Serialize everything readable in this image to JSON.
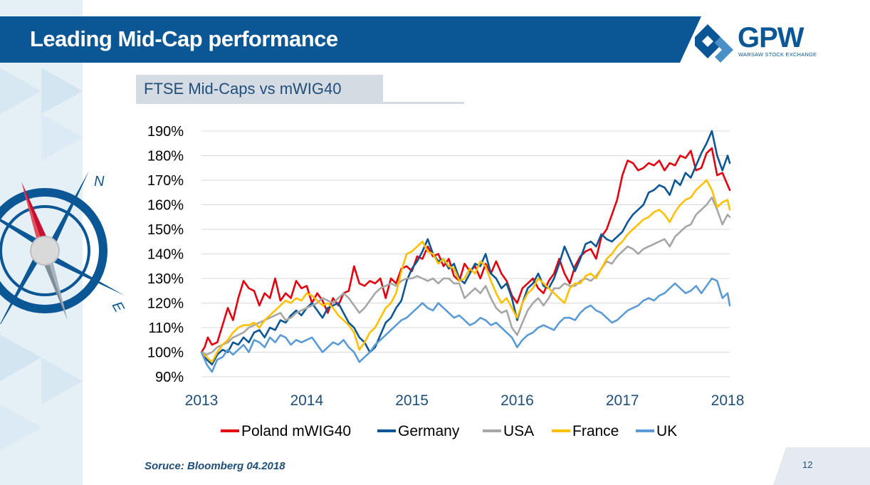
{
  "slide": {
    "title": "Leading Mid-Cap performance",
    "subtitle": "FTSE Mid-Caps vs mWIG40",
    "source": "Soruce: Bloomberg 04.2018",
    "page_number": "12"
  },
  "logo": {
    "name": "GPW",
    "tagline": "WARSAW STOCK EXCHANGE"
  },
  "compass": {
    "north_label": "N",
    "east_label": "E"
  },
  "colors": {
    "header": "#0b5694",
    "accent_light": "#e4eff6",
    "poland": "#e3000f",
    "germany": "#0b5694",
    "usa": "#a6a6a6",
    "france": "#ffc000",
    "uk": "#5b9bd5"
  },
  "chart_data": {
    "type": "line",
    "y_ticks": [
      90,
      100,
      110,
      120,
      130,
      140,
      150,
      160,
      170,
      180,
      190
    ],
    "y_tick_format": "percent",
    "ylim": [
      90,
      190
    ],
    "xlim": [
      2013,
      2018.02
    ],
    "x_ticks": [
      2013,
      2014,
      2015,
      2016,
      2017,
      2018
    ],
    "grid": true,
    "legend_position": "bottom",
    "series": [
      {
        "name": "Poland mWIG40",
        "color": "#e3000f",
        "x": [
          2013.0,
          2013.03,
          2013.06,
          2013.1,
          2013.15,
          2013.2,
          2013.25,
          2013.3,
          2013.35,
          2013.4,
          2013.45,
          2013.5,
          2013.55,
          2013.6,
          2013.65,
          2013.7,
          2013.75,
          2013.8,
          2013.85,
          2013.9,
          2013.95,
          2014.0,
          2014.05,
          2014.1,
          2014.15,
          2014.2,
          2014.25,
          2014.3,
          2014.35,
          2014.4,
          2014.45,
          2014.5,
          2014.55,
          2014.6,
          2014.65,
          2014.7,
          2014.75,
          2014.8,
          2014.85,
          2014.9,
          2014.95,
          2015.0,
          2015.05,
          2015.1,
          2015.15,
          2015.2,
          2015.25,
          2015.3,
          2015.35,
          2015.4,
          2015.45,
          2015.5,
          2015.55,
          2015.6,
          2015.65,
          2015.7,
          2015.75,
          2015.8,
          2015.85,
          2015.9,
          2015.95,
          2016.0,
          2016.05,
          2016.1,
          2016.15,
          2016.2,
          2016.25,
          2016.3,
          2016.35,
          2016.4,
          2016.45,
          2016.5,
          2016.55,
          2016.6,
          2016.65,
          2016.7,
          2016.75,
          2016.8,
          2016.85,
          2016.9,
          2016.95,
          2017.0,
          2017.05,
          2017.1,
          2017.15,
          2017.2,
          2017.25,
          2017.3,
          2017.35,
          2017.4,
          2017.45,
          2017.5,
          2017.55,
          2017.6,
          2017.65,
          2017.7,
          2017.75,
          2017.8,
          2017.85,
          2017.9,
          2017.95,
          2018.0,
          2018.02
        ],
        "values": [
          100,
          102,
          106,
          103,
          104,
          111,
          118,
          113,
          122,
          129,
          126,
          125,
          119,
          124,
          122,
          130,
          121,
          124,
          122,
          129,
          126,
          127,
          120,
          124,
          121,
          116,
          122,
          119,
          124,
          125,
          135,
          128,
          127,
          129,
          128,
          130,
          122,
          130,
          128,
          134,
          135,
          133,
          139,
          138,
          143,
          139,
          140,
          135,
          138,
          131,
          129,
          136,
          133,
          135,
          130,
          136,
          132,
          137,
          132,
          129,
          123,
          120,
          126,
          128,
          130,
          126,
          124,
          129,
          132,
          138,
          132,
          128,
          135,
          139,
          141,
          142,
          138,
          147,
          150,
          156,
          162,
          172,
          178,
          177,
          174,
          175,
          177,
          176,
          178,
          174,
          177,
          176,
          180,
          179,
          182,
          174,
          175,
          181,
          183,
          172,
          173,
          168,
          166
        ]
      },
      {
        "name": "Germany",
        "color": "#0b5694",
        "x": [
          2013.0,
          2013.05,
          2013.1,
          2013.15,
          2013.2,
          2013.25,
          2013.3,
          2013.35,
          2013.4,
          2013.45,
          2013.5,
          2013.55,
          2013.6,
          2013.65,
          2013.7,
          2013.75,
          2013.8,
          2013.85,
          2013.9,
          2013.95,
          2014.0,
          2014.05,
          2014.1,
          2014.15,
          2014.2,
          2014.25,
          2014.3,
          2014.35,
          2014.4,
          2014.45,
          2014.5,
          2014.55,
          2014.6,
          2014.65,
          2014.7,
          2014.75,
          2014.8,
          2014.85,
          2014.9,
          2014.95,
          2015.0,
          2015.05,
          2015.1,
          2015.15,
          2015.2,
          2015.25,
          2015.3,
          2015.35,
          2015.4,
          2015.45,
          2015.5,
          2015.55,
          2015.6,
          2015.65,
          2015.7,
          2015.75,
          2015.8,
          2015.85,
          2015.9,
          2015.95,
          2016.0,
          2016.05,
          2016.1,
          2016.15,
          2016.2,
          2016.25,
          2016.3,
          2016.35,
          2016.4,
          2016.45,
          2016.5,
          2016.55,
          2016.6,
          2016.65,
          2016.7,
          2016.75,
          2016.8,
          2016.85,
          2016.9,
          2016.95,
          2017.0,
          2017.05,
          2017.1,
          2017.15,
          2017.2,
          2017.25,
          2017.3,
          2017.35,
          2017.4,
          2017.45,
          2017.5,
          2017.55,
          2017.6,
          2017.65,
          2017.7,
          2017.75,
          2017.8,
          2017.85,
          2017.9,
          2017.95,
          2018.0,
          2018.02
        ],
        "values": [
          100,
          97,
          95,
          99,
          101,
          100,
          104,
          103,
          106,
          104,
          108,
          109,
          106,
          110,
          109,
          113,
          112,
          115,
          117,
          115,
          118,
          120,
          117,
          114,
          118,
          119,
          120,
          116,
          112,
          110,
          106,
          104,
          100,
          102,
          107,
          112,
          114,
          118,
          121,
          129,
          134,
          137,
          141,
          146,
          140,
          137,
          138,
          134,
          136,
          130,
          128,
          132,
          136,
          135,
          140,
          132,
          130,
          126,
          128,
          122,
          113,
          120,
          126,
          128,
          132,
          127,
          126,
          130,
          136,
          143,
          138,
          133,
          138,
          144,
          145,
          143,
          148,
          146,
          145,
          147,
          149,
          153,
          156,
          158,
          160,
          165,
          166,
          168,
          167,
          164,
          170,
          168,
          173,
          171,
          176,
          181,
          185,
          190,
          180,
          174,
          180,
          177
        ]
      },
      {
        "name": "USA",
        "color": "#a6a6a6",
        "x": [
          2013.0,
          2013.05,
          2013.1,
          2013.15,
          2013.2,
          2013.25,
          2013.3,
          2013.35,
          2013.4,
          2013.45,
          2013.5,
          2013.55,
          2013.6,
          2013.65,
          2013.7,
          2013.75,
          2013.8,
          2013.85,
          2013.9,
          2013.95,
          2014.0,
          2014.05,
          2014.1,
          2014.15,
          2014.2,
          2014.25,
          2014.3,
          2014.35,
          2014.4,
          2014.45,
          2014.5,
          2014.55,
          2014.6,
          2014.65,
          2014.7,
          2014.75,
          2014.8,
          2014.85,
          2014.9,
          2014.95,
          2015.0,
          2015.05,
          2015.1,
          2015.15,
          2015.2,
          2015.25,
          2015.3,
          2015.35,
          2015.4,
          2015.45,
          2015.5,
          2015.55,
          2015.6,
          2015.65,
          2015.7,
          2015.75,
          2015.8,
          2015.85,
          2015.9,
          2015.95,
          2016.0,
          2016.05,
          2016.1,
          2016.15,
          2016.2,
          2016.25,
          2016.3,
          2016.35,
          2016.4,
          2016.45,
          2016.5,
          2016.55,
          2016.6,
          2016.65,
          2016.7,
          2016.75,
          2016.8,
          2016.85,
          2016.9,
          2016.95,
          2017.0,
          2017.05,
          2017.1,
          2017.15,
          2017.2,
          2017.25,
          2017.3,
          2017.35,
          2017.4,
          2017.45,
          2017.5,
          2017.55,
          2017.6,
          2017.65,
          2017.7,
          2017.75,
          2017.8,
          2017.85,
          2017.9,
          2017.95,
          2018.0,
          2018.02
        ],
        "values": [
          100,
          99,
          100,
          102,
          103,
          104,
          106,
          107,
          108,
          110,
          111,
          112,
          113,
          114,
          115,
          116,
          113,
          114,
          116,
          117,
          118,
          119,
          120,
          122,
          121,
          120,
          122,
          124,
          122,
          119,
          116,
          118,
          121,
          124,
          126,
          127,
          128,
          127,
          129,
          130,
          130,
          131,
          130,
          129,
          130,
          128,
          130,
          130,
          128,
          128,
          122,
          124,
          126,
          124,
          127,
          122,
          118,
          116,
          117,
          110,
          107,
          112,
          117,
          120,
          122,
          119,
          122,
          126,
          126,
          128,
          127,
          127,
          129,
          130,
          129,
          131,
          134,
          137,
          136,
          139,
          141,
          143,
          142,
          140,
          142,
          143,
          144,
          145,
          146,
          143,
          147,
          149,
          151,
          152,
          156,
          158,
          160,
          163,
          158,
          152,
          156,
          155
        ]
      },
      {
        "name": "France",
        "color": "#ffc000",
        "x": [
          2013.0,
          2013.05,
          2013.1,
          2013.15,
          2013.2,
          2013.25,
          2013.3,
          2013.35,
          2013.4,
          2013.45,
          2013.5,
          2013.55,
          2013.6,
          2013.65,
          2013.7,
          2013.75,
          2013.8,
          2013.85,
          2013.9,
          2013.95,
          2014.0,
          2014.05,
          2014.1,
          2014.15,
          2014.2,
          2014.25,
          2014.3,
          2014.35,
          2014.4,
          2014.45,
          2014.5,
          2014.55,
          2014.6,
          2014.65,
          2014.7,
          2014.75,
          2014.8,
          2014.85,
          2014.9,
          2014.95,
          2015.0,
          2015.05,
          2015.1,
          2015.15,
          2015.2,
          2015.25,
          2015.3,
          2015.35,
          2015.4,
          2015.45,
          2015.5,
          2015.55,
          2015.6,
          2015.65,
          2015.7,
          2015.75,
          2015.8,
          2015.85,
          2015.9,
          2015.95,
          2016.0,
          2016.05,
          2016.1,
          2016.15,
          2016.2,
          2016.25,
          2016.3,
          2016.35,
          2016.4,
          2016.45,
          2016.5,
          2016.55,
          2016.6,
          2016.65,
          2016.7,
          2016.75,
          2016.8,
          2016.85,
          2016.9,
          2016.95,
          2017.0,
          2017.05,
          2017.1,
          2017.15,
          2017.2,
          2017.25,
          2017.3,
          2017.35,
          2017.4,
          2017.45,
          2017.5,
          2017.55,
          2017.6,
          2017.65,
          2017.7,
          2017.75,
          2017.8,
          2017.85,
          2017.9,
          2017.95,
          2018.0,
          2018.02
        ],
        "values": [
          100,
          98,
          96,
          100,
          103,
          105,
          108,
          110,
          111,
          111,
          112,
          110,
          113,
          115,
          117,
          119,
          121,
          120,
          122,
          121,
          124,
          123,
          121,
          119,
          120,
          118,
          115,
          113,
          111,
          108,
          101,
          104,
          108,
          110,
          114,
          118,
          120,
          124,
          133,
          140,
          141,
          143,
          145,
          141,
          140,
          136,
          138,
          135,
          134,
          129,
          130,
          134,
          132,
          137,
          135,
          129,
          124,
          120,
          122,
          118,
          114,
          120,
          124,
          126,
          130,
          128,
          126,
          124,
          122,
          120,
          126,
          128,
          128,
          131,
          132,
          130,
          134,
          138,
          140,
          143,
          145,
          148,
          150,
          152,
          154,
          155,
          157,
          158,
          156,
          153,
          157,
          160,
          162,
          163,
          166,
          168,
          170,
          166,
          159,
          161,
          162,
          158
        ]
      },
      {
        "name": "UK",
        "color": "#5b9bd5",
        "x": [
          2013.0,
          2013.05,
          2013.1,
          2013.15,
          2013.2,
          2013.25,
          2013.3,
          2013.35,
          2013.4,
          2013.45,
          2013.5,
          2013.55,
          2013.6,
          2013.65,
          2013.7,
          2013.75,
          2013.8,
          2013.85,
          2013.9,
          2013.95,
          2014.0,
          2014.05,
          2014.1,
          2014.15,
          2014.2,
          2014.25,
          2014.3,
          2014.35,
          2014.4,
          2014.45,
          2014.5,
          2014.55,
          2014.6,
          2014.65,
          2014.7,
          2014.75,
          2014.8,
          2014.85,
          2014.9,
          2014.95,
          2015.0,
          2015.05,
          2015.1,
          2015.15,
          2015.2,
          2015.25,
          2015.3,
          2015.35,
          2015.4,
          2015.45,
          2015.5,
          2015.55,
          2015.6,
          2015.65,
          2015.7,
          2015.75,
          2015.8,
          2015.85,
          2015.9,
          2015.95,
          2016.0,
          2016.05,
          2016.1,
          2016.15,
          2016.2,
          2016.25,
          2016.3,
          2016.35,
          2016.4,
          2016.45,
          2016.5,
          2016.55,
          2016.6,
          2016.65,
          2016.7,
          2016.75,
          2016.8,
          2016.85,
          2016.9,
          2016.95,
          2017.0,
          2017.05,
          2017.1,
          2017.15,
          2017.2,
          2017.25,
          2017.3,
          2017.35,
          2017.4,
          2017.45,
          2017.5,
          2017.55,
          2017.6,
          2017.65,
          2017.7,
          2017.75,
          2017.8,
          2017.85,
          2017.9,
          2017.95,
          2018.0,
          2018.02
        ],
        "values": [
          100,
          95,
          92,
          97,
          98,
          101,
          99,
          101,
          103,
          100,
          105,
          104,
          102,
          106,
          104,
          107,
          106,
          103,
          105,
          104,
          105,
          106,
          103,
          100,
          102,
          104,
          103,
          105,
          102,
          100,
          96,
          98,
          100,
          103,
          105,
          107,
          109,
          111,
          113,
          114,
          116,
          118,
          120,
          118,
          117,
          120,
          118,
          116,
          114,
          115,
          113,
          111,
          112,
          114,
          113,
          111,
          112,
          110,
          108,
          106,
          102,
          105,
          107,
          108,
          110,
          111,
          110,
          109,
          112,
          114,
          114,
          113,
          116,
          118,
          119,
          117,
          116,
          114,
          112,
          113,
          115,
          117,
          118,
          119,
          121,
          122,
          121,
          123,
          124,
          126,
          128,
          126,
          124,
          125,
          127,
          124,
          127,
          130,
          129,
          122,
          124,
          119
        ]
      }
    ]
  }
}
